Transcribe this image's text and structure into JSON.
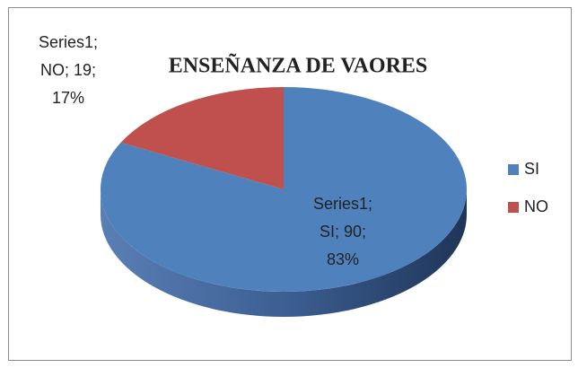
{
  "chart_data": {
    "type": "pie3d",
    "title": "ENSEÑANZA DE VAORES",
    "series_name": "Series1",
    "categories": [
      "SI",
      "NO"
    ],
    "values": [
      90,
      19
    ],
    "value_labels": [
      [
        "Series1;",
        "SI; 90;",
        "83%"
      ],
      [
        "Series1;",
        "NO; 19;",
        "17%"
      ]
    ],
    "colors": [
      "#4f81bd",
      "#c0504d"
    ],
    "legend": "right"
  }
}
